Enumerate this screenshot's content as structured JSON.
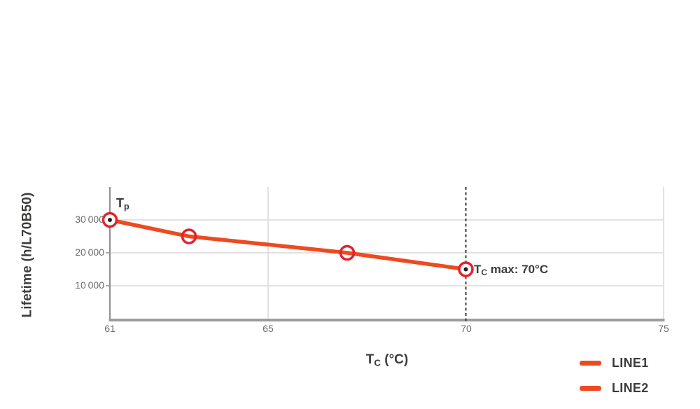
{
  "chart_data": {
    "type": "line",
    "title": "",
    "ylabel": "Lifetime (h/L70B50)",
    "xlabel": {
      "t": "T",
      "sub": "C",
      "rest": " (°C)"
    },
    "xlim": [
      61,
      75
    ],
    "ylim": [
      0,
      40000
    ],
    "grid": true,
    "xticks": [
      {
        "v": 61,
        "label": "61",
        "grid": false
      },
      {
        "v": 65,
        "label": "65",
        "grid": true
      },
      {
        "v": 70,
        "label": "70",
        "grid": false
      },
      {
        "v": 75,
        "label": "75",
        "grid": true
      }
    ],
    "yticks": [
      {
        "v": 30000,
        "label": "30 000"
      },
      {
        "v": 20000,
        "label": "20 000"
      },
      {
        "v": 10000,
        "label": "10 000"
      }
    ],
    "series": [
      {
        "name": "LINE1",
        "color": "#ee4a21",
        "points": [
          {
            "x": 61,
            "y": 30000,
            "dot": true
          },
          {
            "x": 63,
            "y": 25000,
            "dot": false
          },
          {
            "x": 67,
            "y": 20000,
            "dot": false
          },
          {
            "x": 70,
            "y": 15000,
            "dot": true
          }
        ]
      },
      {
        "name": "LINE2",
        "color": "#ee4a21",
        "points": []
      }
    ],
    "annotations": {
      "tp": {
        "t": "T",
        "sub": "p"
      },
      "tc_max": {
        "t": "T",
        "sub": "C",
        "rest": " max: 70°C"
      },
      "vline_x": 70
    },
    "legend": {
      "position": "bottom-right"
    },
    "colors": {
      "line": "#ee4a21",
      "marker_ring": "#e1232e",
      "marker_dot": "#231f20",
      "grid": "#d9d9d9",
      "axis": "#8f8f8f",
      "axis_bottom": "#9c9c9c",
      "dashed_line": "#3a3a3a",
      "label_text": "#3c3c3b",
      "tick_text": "#6b6b6b"
    }
  }
}
